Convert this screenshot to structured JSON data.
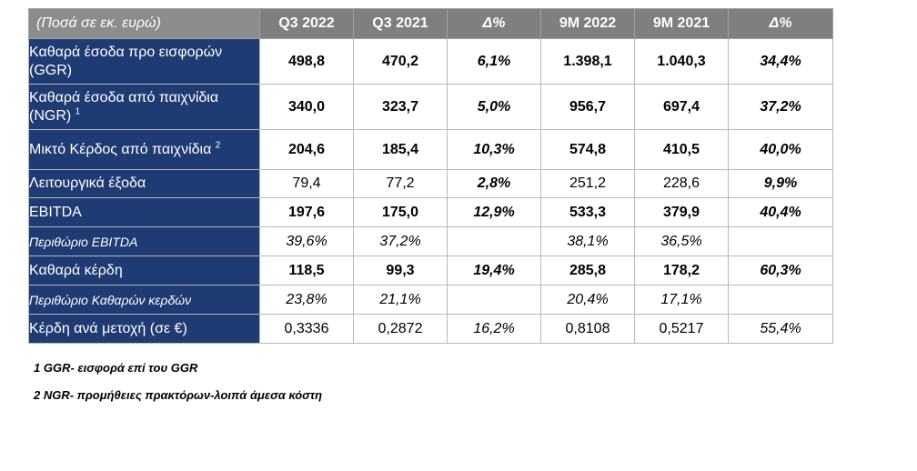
{
  "header": {
    "label": "(Ποσά σε εκ. ευρώ)",
    "columns": [
      "Q3 2022",
      "Q3 2021",
      "Δ%",
      "9M 2022",
      "9M 2021",
      "Δ%"
    ]
  },
  "rows": [
    {
      "label": "Καθαρά έσοδα προ εισφορών (GGR)",
      "values": [
        "498,8",
        "470,2",
        "6,1%",
        "1.398,1",
        "1.040,3",
        "34,4%"
      ]
    },
    {
      "label": "Καθαρά έσοδα από παιχνίδια (NGR)",
      "sup": "1",
      "values": [
        "340,0",
        "323,7",
        "5,0%",
        "956,7",
        "697,4",
        "37,2%"
      ]
    },
    {
      "label": "Μικτό Κέρδος από παιχνίδια",
      "sup": "2",
      "values": [
        "204,6",
        "185,4",
        "10,3%",
        "574,8",
        "410,5",
        "40,0%"
      ]
    },
    {
      "label": "Λειτουργικά έξοδα",
      "values": [
        "79,4",
        "77,2",
        "2,8%",
        "251,2",
        "228,6",
        "9,9%"
      ]
    },
    {
      "label": "EBITDA",
      "values": [
        "197,6",
        "175,0",
        "12,9%",
        "533,3",
        "379,9",
        "40,4%"
      ]
    },
    {
      "label": "Περιθώριο EBITDA",
      "values": [
        "39,6%",
        "37,2%",
        "",
        "38,1%",
        "36,5%",
        ""
      ]
    },
    {
      "label": "Καθαρά κέρδη",
      "values": [
        "118,5",
        "99,3",
        "19,4%",
        "285,8",
        "178,2",
        "60,3%"
      ]
    },
    {
      "label": "Περιθώριο Καθαρών κερδών",
      "values": [
        "23,8%",
        "21,1%",
        "",
        "20,4%",
        "17,1%",
        ""
      ]
    },
    {
      "label": "Κέρδη ανά μετοχή (σε €)",
      "values": [
        "0,3336",
        "0,2872",
        "16,2%",
        "0,8108",
        "0,5217",
        "55,4%"
      ]
    }
  ],
  "footnotes": [
    "1 GGR- εισφορά επί του GGR",
    "2 NGR- προμήθειες πρακτόρων-λοιπά άμεσα κόστη"
  ]
}
